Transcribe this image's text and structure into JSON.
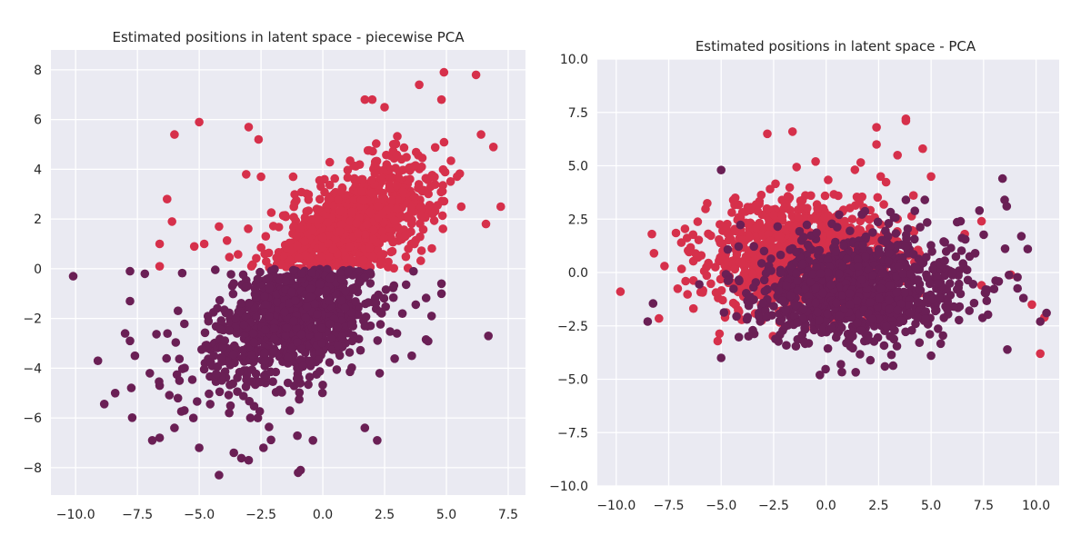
{
  "chart_data": [
    {
      "type": "scatter",
      "title": "Estimated positions in latent space - piecewise PCA",
      "xlim": [
        -11.0,
        8.2
      ],
      "ylim": [
        -9.1,
        8.8
      ],
      "xticks": [
        -10.0,
        -7.5,
        -5.0,
        -2.5,
        0.0,
        2.5,
        5.0,
        7.5
      ],
      "xtick_labels": [
        "−10.0",
        "−7.5",
        "−5.0",
        "−2.5",
        "0.0",
        "2.5",
        "5.0",
        "7.5"
      ],
      "yticks": [
        -8,
        -6,
        -4,
        -2,
        0,
        2,
        4,
        6,
        8
      ],
      "ytick_labels": [
        "−8",
        "−6",
        "−4",
        "−2",
        "0",
        "2",
        "4",
        "6",
        "8"
      ],
      "grid": true,
      "series": [
        {
          "color": "#d6304b",
          "cloud": {
            "n": 900,
            "mean": [
              1.2,
              1.6
            ],
            "sd": [
              1.7,
              1.35
            ],
            "corr": 0.55,
            "y_range": [
              0.0,
              8.8
            ]
          },
          "points": [
            [
              4.9,
              7.9
            ],
            [
              6.2,
              7.8
            ],
            [
              3.9,
              7.4
            ],
            [
              -5.0,
              5.9
            ],
            [
              -6.0,
              5.4
            ],
            [
              -3.0,
              5.7
            ],
            [
              -2.6,
              5.2
            ],
            [
              -3.1,
              3.8
            ],
            [
              -2.5,
              3.7
            ],
            [
              -1.2,
              3.7
            ],
            [
              -6.3,
              2.8
            ],
            [
              -6.1,
              1.9
            ],
            [
              -6.6,
              1.0
            ],
            [
              -6.6,
              0.1
            ],
            [
              -4.2,
              1.7
            ],
            [
              -4.8,
              1.0
            ],
            [
              -5.2,
              0.9
            ],
            [
              7.2,
              2.5
            ],
            [
              6.6,
              1.8
            ],
            [
              6.4,
              5.4
            ],
            [
              6.9,
              4.9
            ],
            [
              5.6,
              2.5
            ],
            [
              4.0,
              4.1
            ],
            [
              2.5,
              6.5
            ],
            [
              2.0,
              6.8
            ],
            [
              1.7,
              6.8
            ],
            [
              4.8,
              6.8
            ]
          ]
        },
        {
          "color": "#6a1f55",
          "cloud": {
            "n": 900,
            "mean": [
              -1.1,
              -1.9
            ],
            "sd": [
              1.9,
              1.6
            ],
            "corr": 0.45,
            "y_range": [
              -8.8,
              0.0
            ]
          },
          "points": [
            [
              -10.1,
              -0.3
            ],
            [
              -9.1,
              -3.7
            ],
            [
              -8.4,
              -5.0
            ],
            [
              -7.8,
              -0.1
            ],
            [
              -7.2,
              -0.2
            ],
            [
              -7.0,
              -4.2
            ],
            [
              -6.9,
              -6.9
            ],
            [
              -6.6,
              -6.8
            ],
            [
              -6.0,
              -6.4
            ],
            [
              -5.0,
              -7.2
            ],
            [
              -4.2,
              -8.3
            ],
            [
              -3.6,
              -7.4
            ],
            [
              -3.0,
              -7.7
            ],
            [
              -2.4,
              -7.2
            ],
            [
              -1.0,
              -8.2
            ],
            [
              -0.9,
              -8.1
            ],
            [
              -0.4,
              -6.9
            ],
            [
              1.7,
              -6.4
            ],
            [
              2.2,
              -6.9
            ],
            [
              2.3,
              -4.2
            ],
            [
              3.0,
              -2.6
            ],
            [
              3.6,
              -3.5
            ],
            [
              4.4,
              -1.9
            ],
            [
              4.8,
              -0.6
            ],
            [
              4.8,
              -1.0
            ],
            [
              6.7,
              -2.7
            ],
            [
              -7.8,
              -1.3
            ],
            [
              -7.8,
              -2.9
            ],
            [
              -8.0,
              -2.6
            ],
            [
              -7.6,
              -3.5
            ],
            [
              -6.6,
              -4.7
            ],
            [
              -5.6,
              -5.7
            ],
            [
              -5.8,
              -4.5
            ]
          ]
        }
      ]
    },
    {
      "type": "scatter",
      "title": "Estimated positions in latent space - PCA",
      "xlim": [
        -10.9,
        11.1
      ],
      "ylim": [
        -10.0,
        10.0
      ],
      "xticks": [
        -10.0,
        -7.5,
        -5.0,
        -2.5,
        0.0,
        2.5,
        5.0,
        7.5,
        10.0
      ],
      "xtick_labels": [
        "−10.0",
        "−7.5",
        "−5.0",
        "−2.5",
        "0.0",
        "2.5",
        "5.0",
        "7.5",
        "10.0"
      ],
      "yticks": [
        -10.0,
        -7.5,
        -5.0,
        -2.5,
        0.0,
        2.5,
        5.0,
        7.5,
        10.0
      ],
      "ytick_labels": [
        "−10.0",
        "−7.5",
        "−5.0",
        "−2.5",
        "0.0",
        "2.5",
        "5.0",
        "7.5",
        "10.0"
      ],
      "grid": true,
      "series": [
        {
          "color": "#d6304b",
          "cloud": {
            "n": 900,
            "mean": [
              -1.4,
              0.8
            ],
            "sd": [
              2.3,
              1.3
            ],
            "corr": 0.1,
            "y_range": [
              -4.5,
              7.5
            ]
          },
          "points": [
            [
              -9.8,
              -0.9
            ],
            [
              -8.3,
              1.8
            ],
            [
              -8.2,
              0.9
            ],
            [
              -7.7,
              0.3
            ],
            [
              -6.9,
              1.4
            ],
            [
              -2.8,
              6.5
            ],
            [
              -1.6,
              6.6
            ],
            [
              -0.5,
              5.2
            ],
            [
              2.4,
              6.8
            ],
            [
              2.4,
              6.0
            ],
            [
              3.8,
              7.1
            ],
            [
              3.8,
              7.2
            ],
            [
              4.6,
              5.8
            ],
            [
              5.0,
              4.5
            ],
            [
              2.6,
              4.5
            ],
            [
              3.4,
              5.5
            ],
            [
              10.2,
              -3.8
            ],
            [
              10.4,
              -2.1
            ],
            [
              9.8,
              -1.5
            ],
            [
              8.8,
              -0.1
            ],
            [
              7.4,
              -0.6
            ],
            [
              7.4,
              2.4
            ],
            [
              6.6,
              1.8
            ]
          ]
        },
        {
          "color": "#6a1f55",
          "cloud": {
            "n": 1000,
            "mean": [
              1.5,
              -0.8
            ],
            "sd": [
              2.6,
              1.2
            ],
            "corr": 0.1,
            "y_range": [
              -5.0,
              5.0
            ]
          },
          "points": [
            [
              -8.5,
              -2.3
            ],
            [
              -5.0,
              4.8
            ],
            [
              -5.0,
              -4.0
            ],
            [
              -0.3,
              -4.8
            ],
            [
              0.7,
              -4.3
            ],
            [
              2.8,
              -4.4
            ],
            [
              5.0,
              -3.9
            ],
            [
              8.4,
              4.4
            ],
            [
              8.5,
              3.4
            ],
            [
              8.6,
              3.1
            ],
            [
              10.5,
              -1.9
            ],
            [
              10.2,
              -2.3
            ],
            [
              9.4,
              -1.2
            ],
            [
              9.3,
              1.7
            ],
            [
              9.6,
              1.1
            ],
            [
              7.3,
              2.9
            ],
            [
              6.4,
              2.4
            ],
            [
              7.6,
              -0.8
            ],
            [
              6.4,
              -1.0
            ],
            [
              3.8,
              3.4
            ],
            [
              4.7,
              3.4
            ]
          ]
        }
      ]
    }
  ]
}
